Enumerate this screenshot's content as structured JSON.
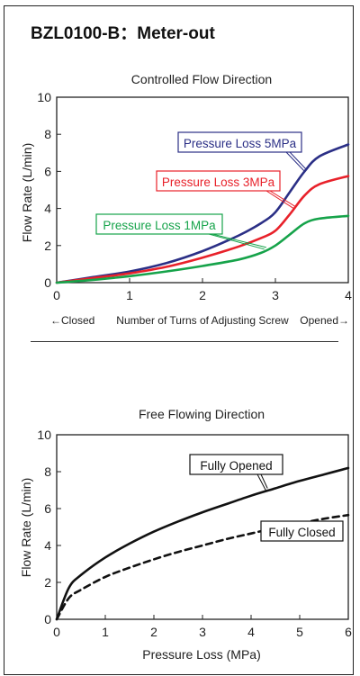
{
  "page": {
    "title": "BZL0100-B：Meter-out"
  },
  "chart_data": [
    {
      "type": "line",
      "title": "Controlled Flow Direction",
      "xlabel": "",
      "ylabel": "Flow Rate (L/min)",
      "xlim": [
        0,
        4
      ],
      "ylim": [
        0,
        10
      ],
      "xticks": [
        0,
        1,
        2,
        3,
        4
      ],
      "yticks": [
        0,
        2,
        4,
        6,
        8,
        10
      ],
      "grid": false,
      "axis_note": {
        "left": "←Closed",
        "center": "Number of Turns of Adjusting Screw",
        "right": "Opened→"
      },
      "series": [
        {
          "name": "Pressure Loss 5MPa",
          "color": "#2b2f86",
          "x": [
            0,
            0.5,
            1,
            1.5,
            2,
            2.5,
            2.8,
            3.0,
            3.2,
            3.4,
            3.6,
            4
          ],
          "y": [
            0,
            0.3,
            0.6,
            1.05,
            1.7,
            2.55,
            3.2,
            3.8,
            4.9,
            6.0,
            6.8,
            7.45
          ]
        },
        {
          "name": "Pressure Loss 3MPa",
          "color": "#e8212a",
          "x": [
            0,
            0.5,
            1,
            1.5,
            2,
            2.5,
            2.8,
            3.0,
            3.2,
            3.4,
            3.6,
            4
          ],
          "y": [
            0,
            0.25,
            0.5,
            0.85,
            1.35,
            1.95,
            2.4,
            2.8,
            3.7,
            4.7,
            5.3,
            5.75
          ]
        },
        {
          "name": "Pressure Loss 1MPa",
          "color": "#16a34a",
          "x": [
            0,
            0.5,
            1,
            1.5,
            2,
            2.5,
            2.8,
            3.0,
            3.2,
            3.4,
            3.6,
            4
          ],
          "y": [
            0,
            0.15,
            0.35,
            0.6,
            0.9,
            1.25,
            1.6,
            2.0,
            2.6,
            3.2,
            3.45,
            3.6
          ]
        }
      ]
    },
    {
      "type": "line",
      "title": "Free Flowing Direction",
      "xlabel": "Pressure Loss (MPa)",
      "ylabel": "Flow Rate (L/min)",
      "xlim": [
        0,
        6
      ],
      "ylim": [
        0,
        10
      ],
      "xticks": [
        0,
        1,
        2,
        3,
        4,
        5,
        6
      ],
      "yticks": [
        0,
        2,
        4,
        6,
        8,
        10
      ],
      "grid": false,
      "series": [
        {
          "name": "Fully Opened",
          "color": "#111111",
          "line_style": "solid",
          "x": [
            0,
            0.25,
            0.5,
            1,
            1.5,
            2,
            2.5,
            3,
            3.5,
            4,
            4.5,
            5,
            5.5,
            6
          ],
          "y": [
            0,
            1.7,
            2.4,
            3.35,
            4.1,
            4.75,
            5.3,
            5.8,
            6.25,
            6.7,
            7.1,
            7.5,
            7.85,
            8.2
          ]
        },
        {
          "name": "Fully Closed",
          "color": "#111111",
          "line_style": "dashed",
          "x": [
            0,
            0.25,
            0.5,
            1,
            1.5,
            2,
            2.5,
            3,
            3.5,
            4,
            4.5,
            5,
            5.5,
            6
          ],
          "y": [
            0,
            1.15,
            1.6,
            2.3,
            2.8,
            3.25,
            3.65,
            4.0,
            4.35,
            4.65,
            4.95,
            5.2,
            5.45,
            5.65
          ]
        }
      ]
    }
  ]
}
